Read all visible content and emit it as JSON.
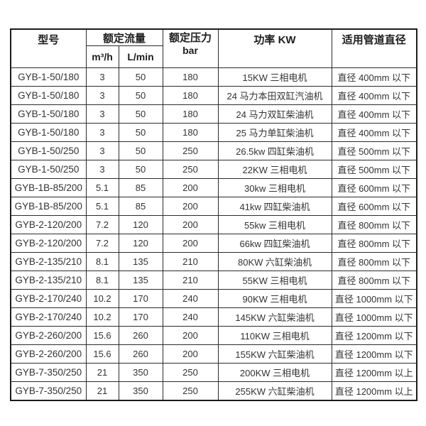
{
  "table": {
    "headers": {
      "model": "型号",
      "flow": "额定流量",
      "flow_m3h": "m³/h",
      "flow_lmin": "L/min",
      "pressure_line1": "额定压力",
      "pressure_line2": "bar",
      "power": "功率 KW",
      "diameter": "适用管道直径"
    },
    "rows": [
      [
        "GYB-1-50/180",
        "3",
        "50",
        "180",
        "15KW 三相电机",
        "直径 400mm 以下"
      ],
      [
        "GYB-1-50/180",
        "3",
        "50",
        "180",
        "24 马力本田双缸汽油机",
        "直径 400mm 以下"
      ],
      [
        "GYB-1-50/180",
        "3",
        "50",
        "180",
        "24 马力双缸柴油机",
        "直径 400mm 以下"
      ],
      [
        "GYB-1-50/180",
        "3",
        "50",
        "180",
        "25 马力单缸柴油机",
        "直径 400mm 以下"
      ],
      [
        "GYB-1-50/250",
        "3",
        "50",
        "250",
        "26.5kw 四缸柴油机",
        "直径 500mm 以下"
      ],
      [
        "GYB-1-50/250",
        "3",
        "50",
        "250",
        "22KW 三相电机",
        "直径 500mm 以下"
      ],
      [
        "GYB-1B-85/200",
        "5.1",
        "85",
        "200",
        "30kw 三相电机",
        "直径 600mm 以下"
      ],
      [
        "GYB-1B-85/200",
        "5.1",
        "85",
        "200",
        "41kw 四缸柴油机",
        "直径 600mm 以下"
      ],
      [
        "GYB-2-120/200",
        "7.2",
        "120",
        "200",
        "55kw 三相电机",
        "直径 800mm 以下"
      ],
      [
        "GYB-2-120/200",
        "7.2",
        "120",
        "200",
        "66kw 四缸柴油机",
        "直径 800mm 以下"
      ],
      [
        "GYB-2-135/210",
        "8.1",
        "135",
        "210",
        "80KW 六缸柴油机",
        "直径 800mm 以下"
      ],
      [
        "GYB-2-135/210",
        "8.1",
        "135",
        "210",
        "55KW 三相电机",
        "直径 800mm 以下"
      ],
      [
        "GYB-2-170/240",
        "10.2",
        "170",
        "240",
        "90KW 三相电机",
        "直径 1000mm 以下"
      ],
      [
        "GYB-2-170/240",
        "10.2",
        "170",
        "240",
        "145KW 六缸柴油机",
        "直径 1000mm 以下"
      ],
      [
        "GYB-2-260/200",
        "15.6",
        "260",
        "200",
        "110KW 三相电机",
        "直径 1200mm 以下"
      ],
      [
        "GYB-2-260/200",
        "15.6",
        "260",
        "200",
        "155KW 六缸柴油机",
        "直径 1200mm 以下"
      ],
      [
        "GYB-7-350/250",
        "21",
        "350",
        "250",
        "200KW 三相电机",
        "直径 1200mm 以上"
      ],
      [
        "GYB-7-350/250",
        "21",
        "350",
        "250",
        "255KW 六缸柴油机",
        "直径 1200mm 以上"
      ]
    ]
  }
}
